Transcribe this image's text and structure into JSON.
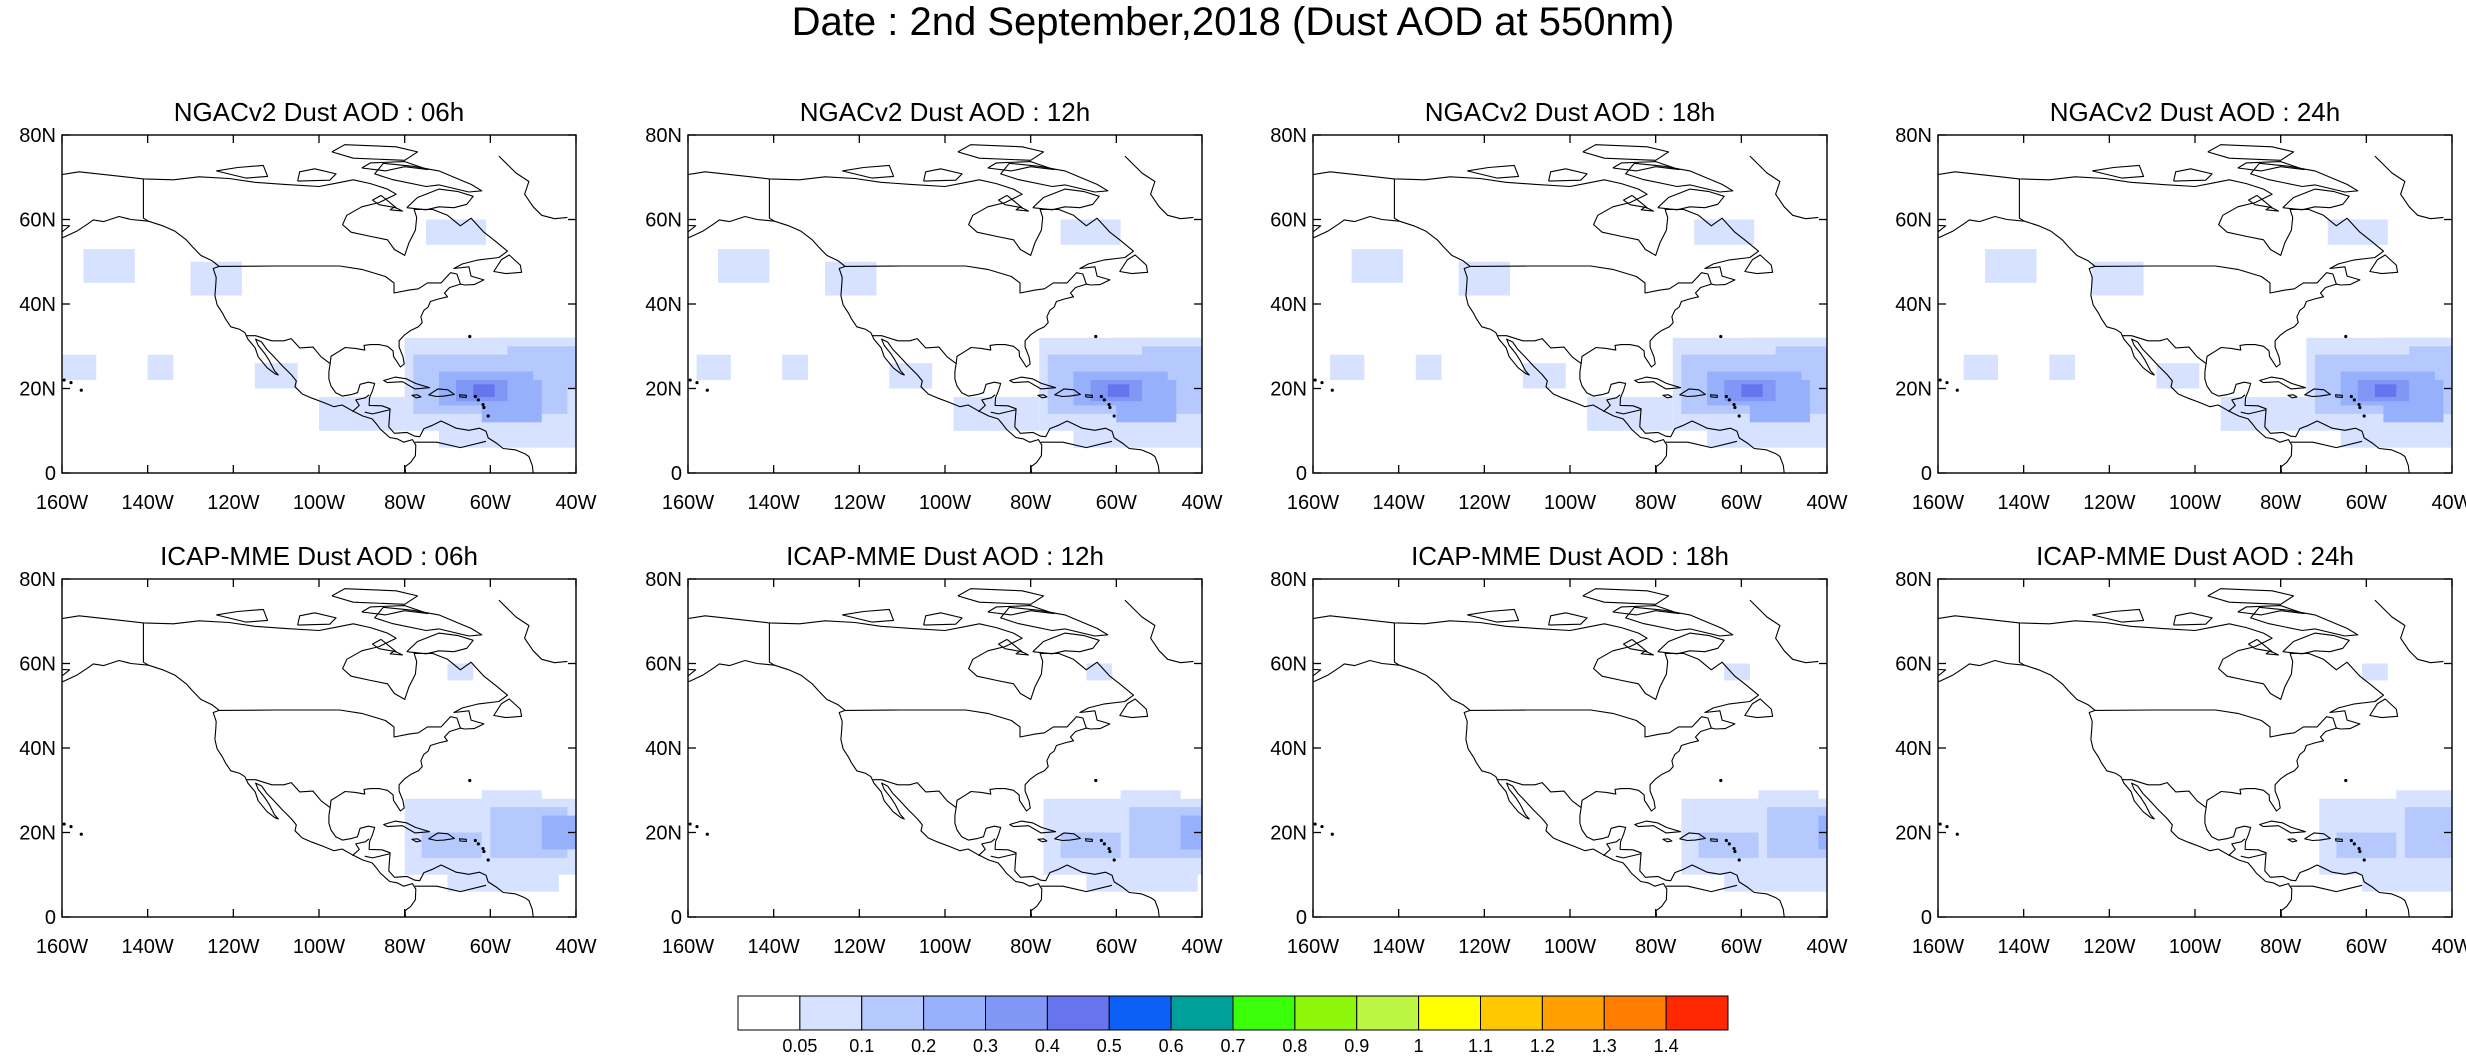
{
  "figure": {
    "title": "Date : 2nd September,2018 (Dust AOD at 550nm)"
  },
  "map_axes": {
    "lon_ticks": [
      "160W",
      "140W",
      "120W",
      "100W",
      "80W",
      "60W",
      "40W"
    ],
    "lat_ticks": [
      "0",
      "20N",
      "40N",
      "60N",
      "80N"
    ],
    "lon_range": [
      -160,
      -40
    ],
    "lat_range": [
      0,
      80
    ]
  },
  "panels": [
    {
      "title": "NGACv2 Dust AOD : 06h",
      "model": "NGACv2",
      "hour": "06h"
    },
    {
      "title": "NGACv2 Dust AOD : 12h",
      "model": "NGACv2",
      "hour": "12h"
    },
    {
      "title": "NGACv2 Dust AOD : 18h",
      "model": "NGACv2",
      "hour": "18h"
    },
    {
      "title": "NGACv2 Dust AOD : 24h",
      "model": "NGACv2",
      "hour": "24h"
    },
    {
      "title": "ICAP-MME Dust AOD : 06h",
      "model": "ICAP-MME",
      "hour": "06h"
    },
    {
      "title": "ICAP-MME Dust AOD : 12h",
      "model": "ICAP-MME",
      "hour": "12h"
    },
    {
      "title": "ICAP-MME Dust AOD : 18h",
      "model": "ICAP-MME",
      "hour": "18h"
    },
    {
      "title": "ICAP-MME Dust AOD : 24h",
      "model": "ICAP-MME",
      "hour": "24h"
    }
  ],
  "colorbar": {
    "labels": [
      "0.05",
      "0.1",
      "0.2",
      "0.3",
      "0.4",
      "0.5",
      "0.6",
      "0.7",
      "0.8",
      "0.9",
      "1",
      "1.1",
      "1.2",
      "1.3",
      "1.4"
    ],
    "colors": [
      "#ffffff",
      "#d6e2ff",
      "#b5c9ff",
      "#97b0fb",
      "#8097f5",
      "#6675ee",
      "#0c5ff7",
      "#00a09a",
      "#3bff09",
      "#8ef60a",
      "#bdf545",
      "#ffff00",
      "#ffc800",
      "#ffa000",
      "#ff7d00",
      "#ff2800"
    ]
  },
  "dust_colors": {
    "light": "#d6e2ff",
    "medium": "#b5c9ff",
    "strong": "#97b0fb",
    "core": "#8097f5",
    "peak": "#6675ee"
  },
  "coastline_color": "#000000"
}
